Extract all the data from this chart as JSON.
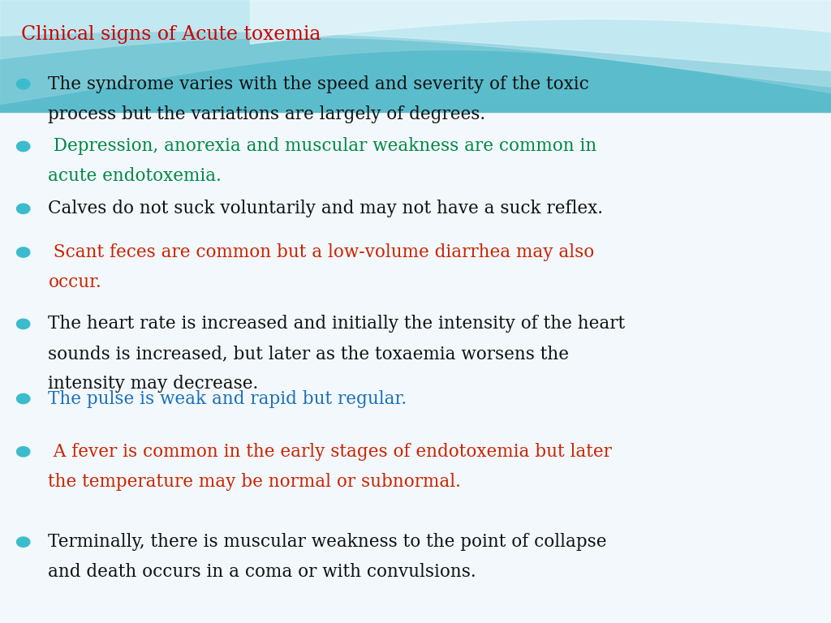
{
  "title": "Clinical signs of Acute toxemia",
  "title_color": "#cc0000",
  "title_fontsize": 17,
  "background_top_color": "#5bbccc",
  "bullet_color": "#3bbccc",
  "bullet_points": [
    {
      "lines": [
        "The syndrome varies with the speed and severity of the toxic",
        "process but the variations are largely of degrees."
      ],
      "color": "#111111"
    },
    {
      "lines": [
        " Depression, anorexia and muscular weakness are common in",
        "acute endotoxemia."
      ],
      "color": "#008844"
    },
    {
      "lines": [
        "Calves do not suck voluntarily and may not have a suck reflex."
      ],
      "color": "#111111"
    },
    {
      "lines": [
        " Scant feces are common but a low-volume diarrhea may also",
        "occur."
      ],
      "color": "#cc2200"
    },
    {
      "lines": [
        "The heart rate is increased and initially the intensity of the heart",
        "sounds is increased, but later as the toxaemia worsens the",
        "intensity may decrease."
      ],
      "color": "#111111"
    },
    {
      "lines": [
        "The pulse is weak and rapid but regular."
      ],
      "color": "#1a6fbb"
    },
    {
      "lines": [
        " A fever is common in the early stages of endotoxemia but later",
        "the temperature may be normal or subnormal."
      ],
      "color": "#cc2200"
    },
    {
      "lines": [
        "Terminally, there is muscular weakness to the point of collapse",
        "and death occurs in a coma or with convulsions."
      ],
      "color": "#111111"
    }
  ],
  "fontsize": 15.5,
  "font_family": "DejaVu Serif",
  "fig_width": 10.24,
  "fig_height": 7.68,
  "dpi": 100,
  "wave_color1": "#5bbccc",
  "wave_color2": "#80ccd8",
  "wave_color3": "#aadde8",
  "wave_color4": "#cceef5",
  "bg_color": "#f2f8fb"
}
